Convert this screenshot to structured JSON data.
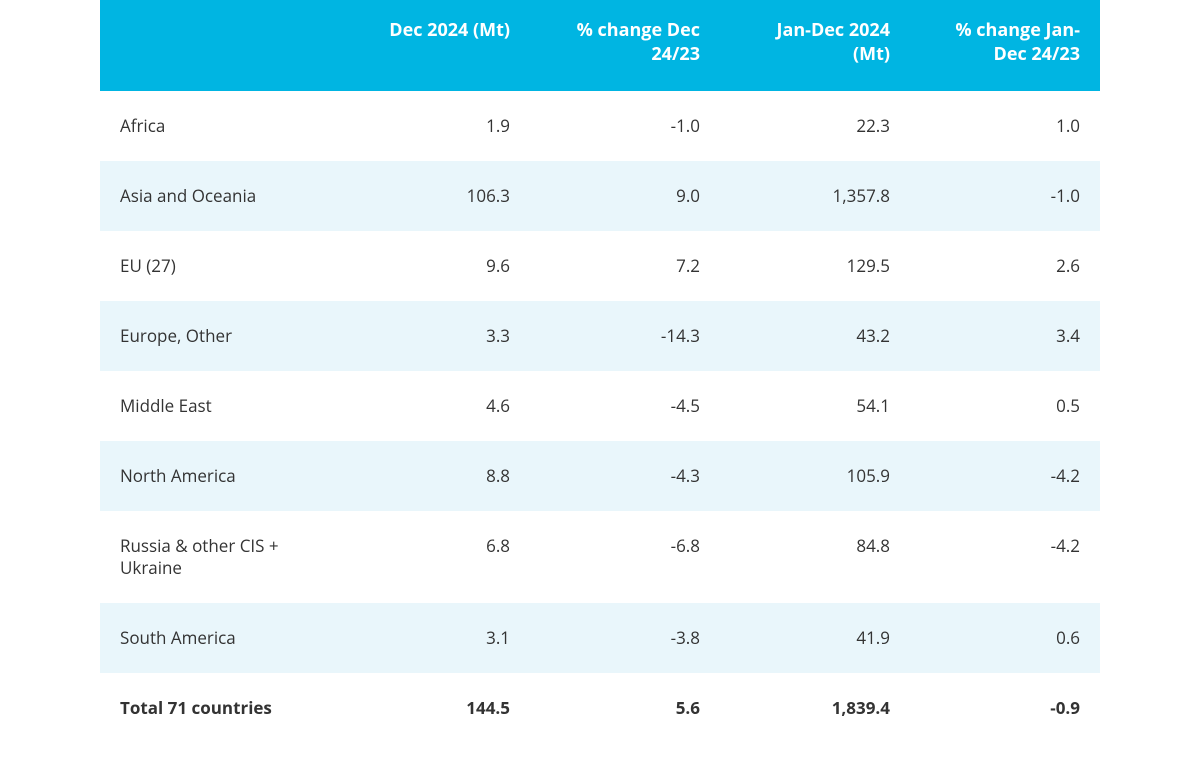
{
  "table": {
    "type": "table",
    "header_bg": "#00b5e2",
    "header_text_color": "#ffffff",
    "row_bg_odd": "#ffffff",
    "row_bg_even": "#e9f6fb",
    "text_color": "#333333",
    "font_family": "Open Sans",
    "header_fontsize": 18,
    "body_fontsize": 17,
    "columns": [
      {
        "key": "region",
        "label": "",
        "align": "left",
        "width_pct": 24
      },
      {
        "key": "dec2024",
        "label": "Dec 2024 (Mt)",
        "align": "right",
        "width_pct": 19
      },
      {
        "key": "pct_dec",
        "label": "% change Dec 24/23",
        "align": "right",
        "width_pct": 19
      },
      {
        "key": "jandec2024",
        "label": "Jan-Dec 2024 (Mt)",
        "align": "right",
        "width_pct": 19
      },
      {
        "key": "pct_jandec",
        "label": "% change Jan-Dec 24/23",
        "align": "right",
        "width_pct": 19
      }
    ],
    "rows": [
      {
        "region": "Africa",
        "dec2024": "1.9",
        "pct_dec": "-1.0",
        "jandec2024": "22.3",
        "pct_jandec": "1.0"
      },
      {
        "region": "Asia and Oceania",
        "dec2024": "106.3",
        "pct_dec": "9.0",
        "jandec2024": "1,357.8",
        "pct_jandec": "-1.0"
      },
      {
        "region": "EU (27)",
        "dec2024": "9.6",
        "pct_dec": "7.2",
        "jandec2024": "129.5",
        "pct_jandec": "2.6"
      },
      {
        "region": "Europe, Other",
        "dec2024": "3.3",
        "pct_dec": "-14.3",
        "jandec2024": "43.2",
        "pct_jandec": "3.4"
      },
      {
        "region": "Middle East",
        "dec2024": "4.6",
        "pct_dec": "-4.5",
        "jandec2024": "54.1",
        "pct_jandec": "0.5"
      },
      {
        "region": "North America",
        "dec2024": "8.8",
        "pct_dec": "-4.3",
        "jandec2024": "105.9",
        "pct_jandec": "-4.2"
      },
      {
        "region": "Russia & other CIS + Ukraine",
        "dec2024": "6.8",
        "pct_dec": "-6.8",
        "jandec2024": "84.8",
        "pct_jandec": "-4.2"
      },
      {
        "region": "South America",
        "dec2024": "3.1",
        "pct_dec": "-3.8",
        "jandec2024": "41.9",
        "pct_jandec": "0.6"
      }
    ],
    "total": {
      "region": "Total 71 countries",
      "dec2024": "144.5",
      "pct_dec": "5.6",
      "jandec2024": "1,839.4",
      "pct_jandec": "-0.9"
    }
  }
}
